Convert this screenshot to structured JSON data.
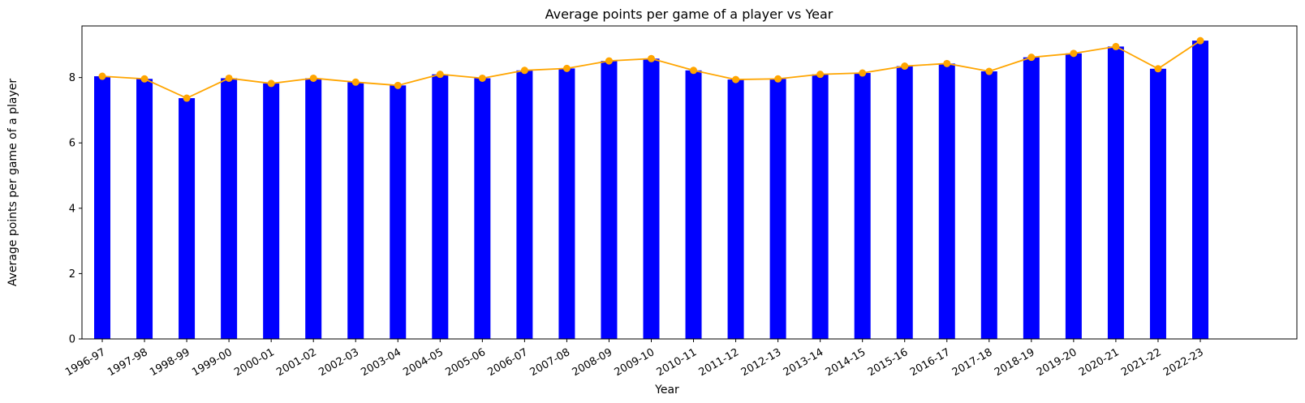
{
  "chart_data": {
    "type": "bar",
    "title": "Average points per game of a player vs Year",
    "xlabel": "Year",
    "ylabel": "Average points per game of a player",
    "categories": [
      "1996-97",
      "1997-98",
      "1998-99",
      "1999-00",
      "2000-01",
      "2001-02",
      "2002-03",
      "2003-04",
      "2004-05",
      "2005-06",
      "2006-07",
      "2007-08",
      "2008-09",
      "2009-10",
      "2010-11",
      "2011-12",
      "2012-13",
      "2013-14",
      "2014-15",
      "2015-16",
      "2016-17",
      "2017-18",
      "2018-19",
      "2019-20",
      "2020-21",
      "2021-22",
      "2022-23"
    ],
    "series": [
      {
        "kind": "bar",
        "color": "#0000ff",
        "values": [
          8.04,
          7.96,
          7.37,
          7.98,
          7.82,
          7.98,
          7.86,
          7.76,
          8.1,
          7.98,
          8.22,
          8.28,
          8.51,
          8.58,
          8.22,
          7.94,
          7.96,
          8.1,
          8.14,
          8.35,
          8.43,
          8.19,
          8.62,
          8.74,
          8.95,
          8.27,
          9.13
        ]
      },
      {
        "kind": "line",
        "color": "#ffa500",
        "marker": "circle",
        "values": [
          8.04,
          7.96,
          7.37,
          7.98,
          7.82,
          7.98,
          7.86,
          7.76,
          8.1,
          7.98,
          8.22,
          8.28,
          8.51,
          8.58,
          8.22,
          7.94,
          7.96,
          8.1,
          8.14,
          8.35,
          8.43,
          8.19,
          8.62,
          8.74,
          8.95,
          8.27,
          9.13
        ]
      }
    ],
    "yticks": [
      0,
      2,
      4,
      6,
      8
    ],
    "ylim": [
      0,
      9.58
    ],
    "grid": false,
    "legend": "none"
  }
}
